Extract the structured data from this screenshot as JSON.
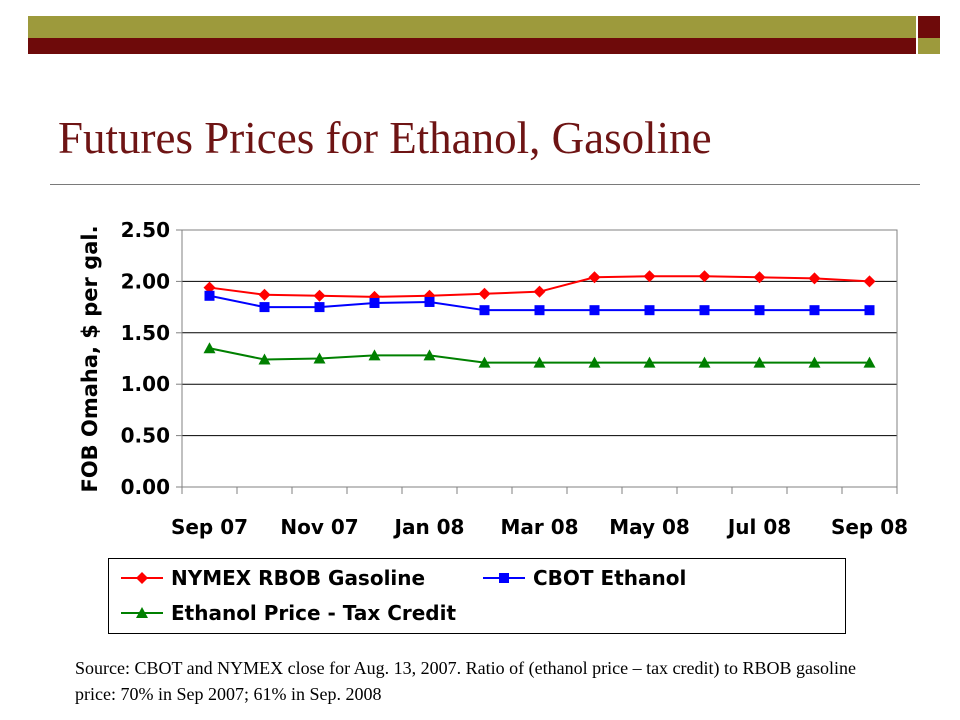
{
  "slide": {
    "title": "Futures Prices for Ethanol, Gasoline",
    "source": "Source: CBOT and NYMEX close for Aug. 13, 2007. Ratio of (ethanol price – tax credit) to RBOB gasoline price: 70% in Sep 2007; 61% in Sep. 2008"
  },
  "colors": {
    "olive": "#9d9a3c",
    "dark_red": "#6e0a0a"
  },
  "chart_data": {
    "type": "line",
    "title": "",
    "xlabel": "",
    "ylabel": "FOB Omaha, $ per gal.",
    "ylim": [
      0,
      2.5
    ],
    "yticks": [
      "0.00",
      "0.50",
      "1.00",
      "1.50",
      "2.00",
      "2.50"
    ],
    "categories": [
      "Sep 07",
      "Oct 07",
      "Nov 07",
      "Dec 07",
      "Jan 08",
      "Feb 08",
      "Mar 08",
      "Apr 08",
      "May 08",
      "Jun 08",
      "Jul 08",
      "Aug 08",
      "Sep 08"
    ],
    "x_tick_labels": [
      "Sep 07",
      "Nov 07",
      "Jan 08",
      "Mar 08",
      "May 08",
      "Jul 08",
      "Sep 08"
    ],
    "grid": true,
    "legend_position": "bottom",
    "series": [
      {
        "name": "NYMEX RBOB Gasoline",
        "color": "#ff0000",
        "marker": "diamond",
        "values": [
          1.94,
          1.87,
          1.86,
          1.85,
          1.86,
          1.88,
          1.9,
          2.04,
          2.05,
          2.05,
          2.04,
          2.03,
          2.0
        ]
      },
      {
        "name": "CBOT Ethanol",
        "color": "#0000ff",
        "marker": "square",
        "values": [
          1.86,
          1.75,
          1.75,
          1.79,
          1.8,
          1.72,
          1.72,
          1.72,
          1.72,
          1.72,
          1.72,
          1.72,
          1.72
        ]
      },
      {
        "name": "Ethanol Price - Tax Credit",
        "color": "#008000",
        "marker": "triangle",
        "values": [
          1.35,
          1.24,
          1.25,
          1.28,
          1.28,
          1.21,
          1.21,
          1.21,
          1.21,
          1.21,
          1.21,
          1.21,
          1.21
        ]
      }
    ]
  }
}
